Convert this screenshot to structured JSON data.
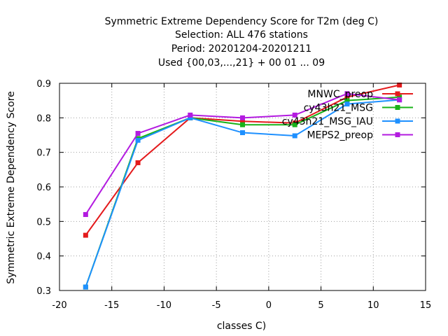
{
  "chart_data": {
    "type": "line",
    "title_lines": [
      "Symmetric Extreme Dependency Score  for T2m (deg C)",
      "Selection: ALL    476 stations",
      "Period: 20201204-20201211",
      "Used {00,03,...,21} + 00 01 ... 09"
    ],
    "xlabel": "classes C)",
    "ylabel": "Symmetric Extreme Dependency Score",
    "xlim": [
      -20,
      15
    ],
    "ylim": [
      0.3,
      0.9
    ],
    "x_ticks": [
      -20,
      -15,
      -10,
      -5,
      0,
      5,
      10,
      15
    ],
    "y_ticks": [
      0.3,
      0.4,
      0.5,
      0.6,
      0.7,
      0.8,
      0.9
    ],
    "x_tick_labels": [
      "-20",
      "-15",
      "-10",
      "-5",
      "0",
      "5",
      "10",
      "15"
    ],
    "y_tick_labels": [
      "0.3",
      "0.4",
      "0.5",
      "0.6",
      "0.7",
      "0.8",
      "0.9"
    ],
    "grid": true,
    "legend_position": "top-right",
    "x": [
      -17.5,
      -12.5,
      -7.5,
      -2.5,
      2.5,
      7.5,
      12.5
    ],
    "series": [
      {
        "name": "MNWC_preop",
        "color": "#e41a1c",
        "values": [
          0.46,
          0.67,
          0.8,
          0.79,
          0.785,
          0.86,
          0.895
        ]
      },
      {
        "name": "cy43h21_MSG",
        "color": "#19b319",
        "values": [
          0.31,
          0.74,
          0.8,
          0.78,
          0.78,
          0.85,
          0.86
        ]
      },
      {
        "name": "cy43h21_MSG_IAU",
        "color": "#1e90ff",
        "values": [
          0.31,
          0.735,
          0.8,
          0.757,
          0.748,
          0.84,
          0.852
        ]
      },
      {
        "name": "MEPS2_preop",
        "color": "#b31be0",
        "values": [
          0.52,
          0.755,
          0.808,
          0.8,
          0.808,
          0.87,
          0.852
        ]
      }
    ]
  }
}
